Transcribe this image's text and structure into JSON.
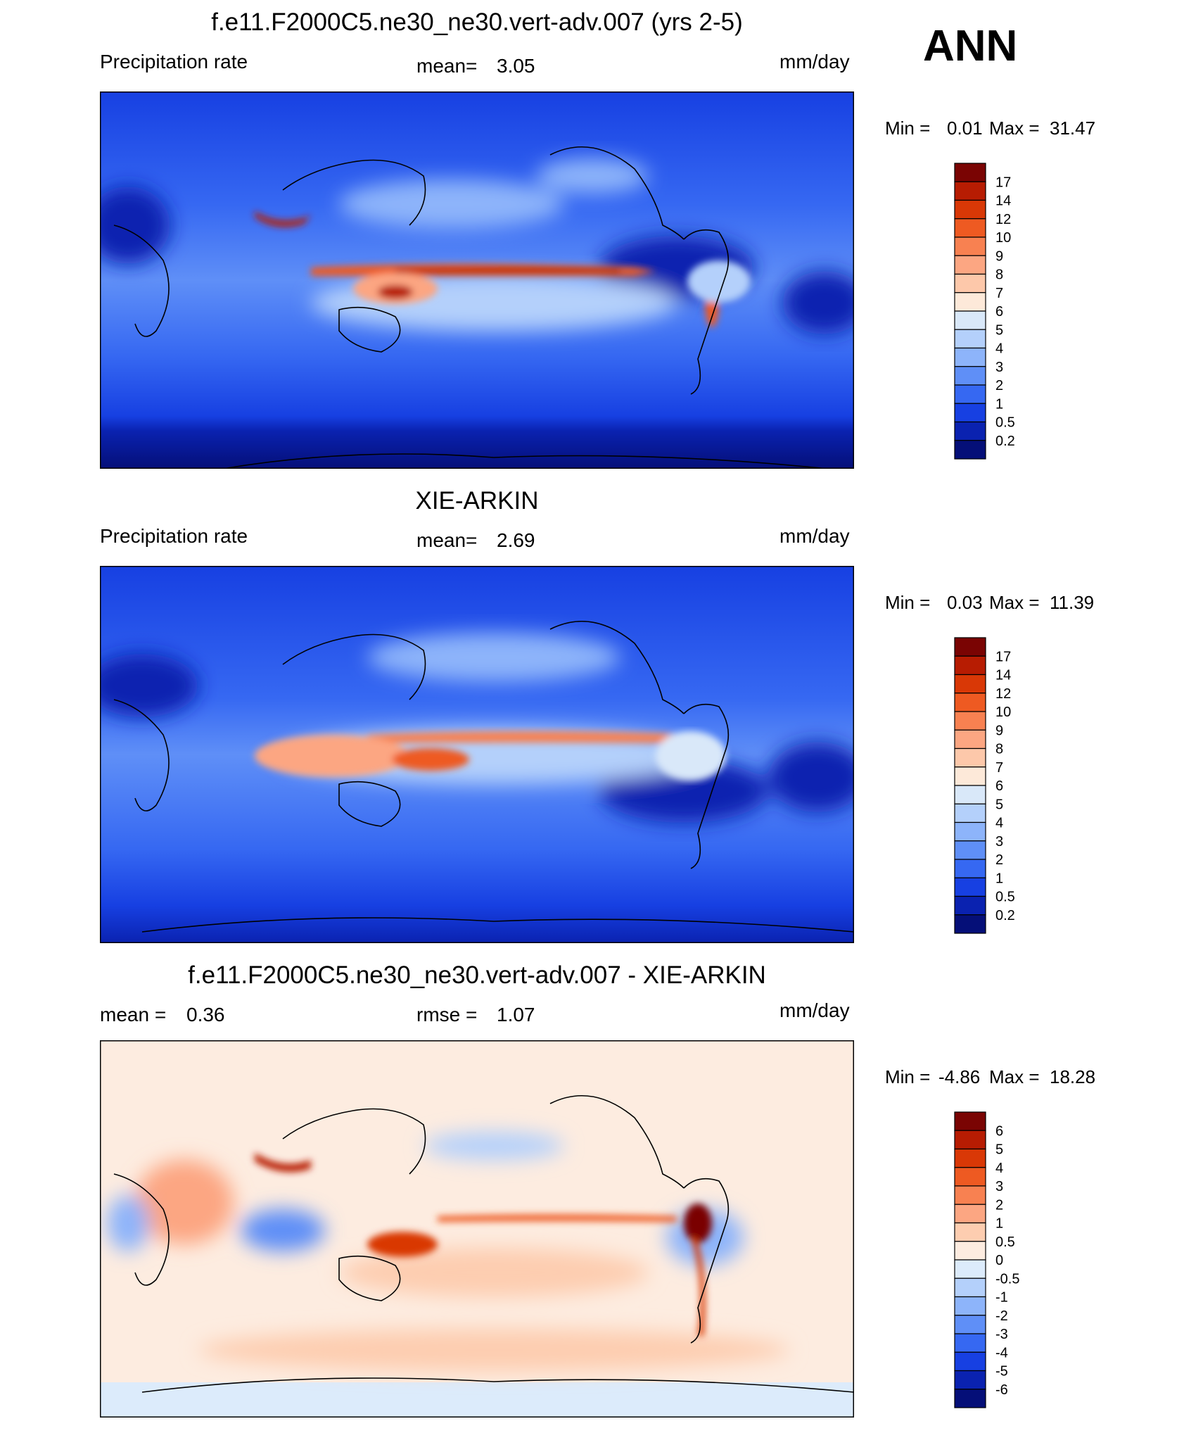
{
  "season": "ANN",
  "panels": [
    {
      "title": "f.e11.F2000C5.ne30_ne30.vert-adv.007 (yrs 2-5)",
      "left_label": "Precipitation rate",
      "center_label": "mean=",
      "center_value": "3.05",
      "units": "mm/day",
      "min_label": "Min =",
      "min_value": "0.01",
      "max_label": "Max =",
      "max_value": "31.47",
      "levels": [
        "17",
        "14",
        "12",
        "10",
        "9",
        "8",
        "7",
        "6",
        "5",
        "4",
        "3",
        "2",
        "1",
        "0.5",
        "0.2"
      ]
    },
    {
      "title": "XIE-ARKIN",
      "left_label": "Precipitation rate",
      "center_label": "mean=",
      "center_value": "2.69",
      "units": "mm/day",
      "min_label": "Min =",
      "min_value": "0.03",
      "max_label": "Max =",
      "max_value": "11.39",
      "levels": [
        "17",
        "14",
        "12",
        "10",
        "9",
        "8",
        "7",
        "6",
        "5",
        "4",
        "3",
        "2",
        "1",
        "0.5",
        "0.2"
      ]
    },
    {
      "title": "f.e11.F2000C5.ne30_ne30.vert-adv.007 - XIE-ARKIN",
      "left_label": "mean =",
      "left_value": "0.36",
      "center_label": "rmse =",
      "center_value": "1.07",
      "units": "mm/day",
      "min_label": "Min =",
      "min_value": "-4.86",
      "max_label": "Max =",
      "max_value": "18.28",
      "levels": [
        "6",
        "5",
        "4",
        "3",
        "2",
        "1",
        "0.5",
        "0",
        "-0.5",
        "-1",
        "-2",
        "-3",
        "-4",
        "-5",
        "-6"
      ]
    }
  ],
  "colors": {
    "precip_scale": [
      "#7a0403",
      "#b71c02",
      "#d93806",
      "#ee5a22",
      "#f88151",
      "#fca682",
      "#fdc8aa",
      "#fde9d9",
      "#d9e8f9",
      "#b4d0fb",
      "#8db4fa",
      "#5f8ff7",
      "#3668f2",
      "#1740e2",
      "#0a22b0",
      "#050f78"
    ],
    "diff_scale": [
      "#7a0403",
      "#b71c02",
      "#d93806",
      "#ee5a22",
      "#f88151",
      "#fca682",
      "#fdcdb0",
      "#fdece0",
      "#dcebfb",
      "#b4d0fb",
      "#8db4fa",
      "#5f8ff7",
      "#3668f2",
      "#1740e2",
      "#0a22b0",
      "#050f78"
    ]
  }
}
